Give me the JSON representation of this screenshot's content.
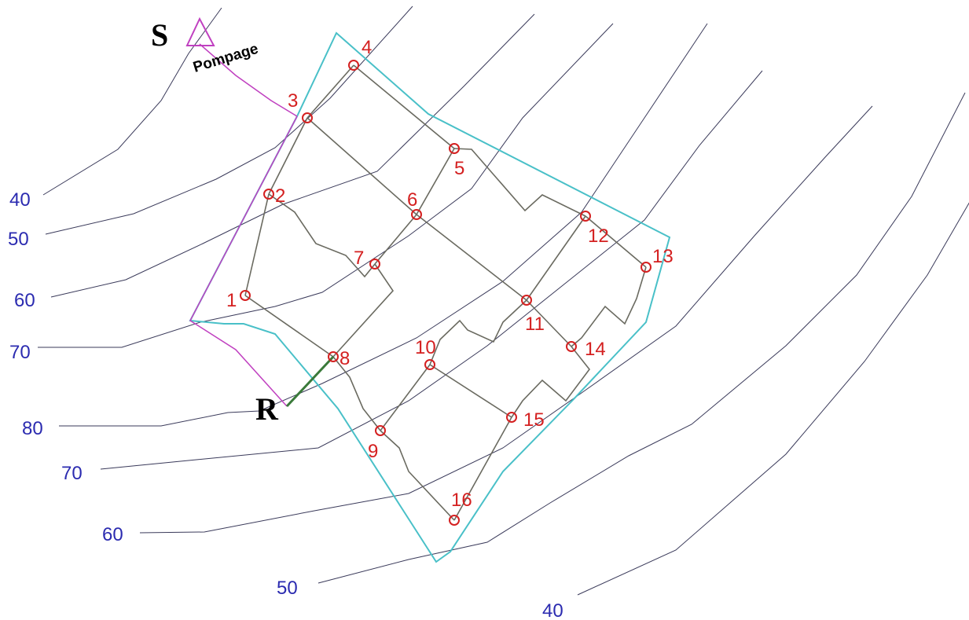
{
  "map": {
    "source_label": "S",
    "reservoir_label": "R",
    "pump_label": "Pompage",
    "contours": [
      {
        "label": "40"
      },
      {
        "label": "50"
      },
      {
        "label": "60"
      },
      {
        "label": "70"
      },
      {
        "label": "80"
      },
      {
        "label": "70"
      },
      {
        "label": "60"
      },
      {
        "label": "50"
      },
      {
        "label": "40"
      }
    ],
    "nodes": [
      "1",
      "2",
      "3",
      "4",
      "5",
      "6",
      "7",
      "8",
      "9",
      "10",
      "11",
      "12",
      "13",
      "14",
      "15",
      "16"
    ]
  },
  "colors": {
    "contour": "#3a3a5a",
    "contour_label": "#2b2bb0",
    "boundary": "#49c0c8",
    "supply_line": "#c040c0",
    "pipe": "#6a6a60",
    "node": "#d42020"
  }
}
